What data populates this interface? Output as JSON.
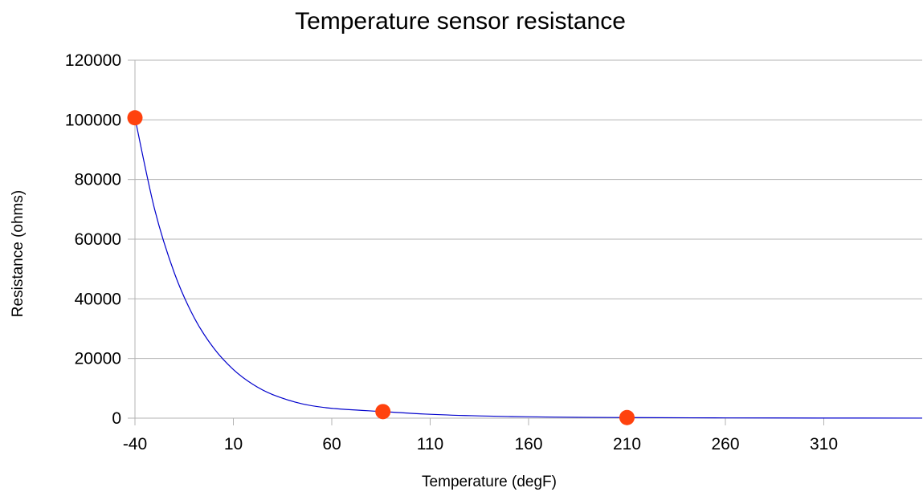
{
  "chart_data": {
    "type": "scatter",
    "title": "Temperature sensor resistance",
    "xlabel": "Temperature (degF)",
    "ylabel": "Resistance (ohms)",
    "xlim": [
      -40,
      360
    ],
    "ylim": [
      0,
      120000
    ],
    "x_ticks": [
      -40,
      10,
      60,
      110,
      160,
      210,
      260,
      310
    ],
    "y_ticks": [
      0,
      20000,
      40000,
      60000,
      80000,
      100000,
      120000
    ],
    "grid": {
      "horizontal": true,
      "vertical": false
    },
    "legend": "none",
    "series": [
      {
        "kind": "points",
        "color": "#ff420e",
        "points": [
          {
            "x": -40,
            "y": 100700
          },
          {
            "x": 86,
            "y": 2200
          },
          {
            "x": 210,
            "y": 200
          }
        ]
      },
      {
        "kind": "fitted-curve",
        "color": "#0000cc",
        "points": [
          {
            "x": -40,
            "y": 100700
          },
          {
            "x": -30,
            "y": 70000
          },
          {
            "x": -20,
            "y": 48700
          },
          {
            "x": -10,
            "y": 33800
          },
          {
            "x": 0,
            "y": 23500
          },
          {
            "x": 10,
            "y": 16300
          },
          {
            "x": 20,
            "y": 11300
          },
          {
            "x": 30,
            "y": 7900
          },
          {
            "x": 45,
            "y": 4800
          },
          {
            "x": 60,
            "y": 3300
          },
          {
            "x": 86,
            "y": 2200
          },
          {
            "x": 110,
            "y": 1300
          },
          {
            "x": 135,
            "y": 750
          },
          {
            "x": 160,
            "y": 450
          },
          {
            "x": 185,
            "y": 290
          },
          {
            "x": 210,
            "y": 200
          },
          {
            "x": 260,
            "y": 90
          },
          {
            "x": 310,
            "y": 40
          },
          {
            "x": 360,
            "y": 20
          }
        ]
      }
    ]
  }
}
